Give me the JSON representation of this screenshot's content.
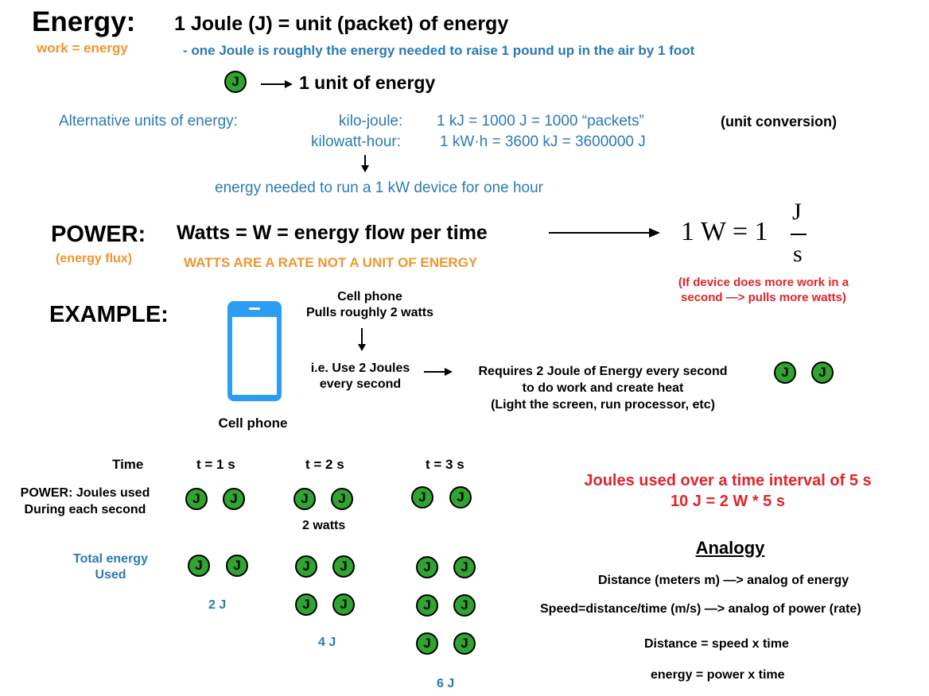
{
  "energy": {
    "title": "Energy:",
    "subtitle": "work = energy",
    "joule_def": "1 Joule (J) = unit (packet) of energy",
    "joule_desc": "- one Joule is roughly the energy needed to raise 1 pound up in the air by 1 foot",
    "unit_label": "1 unit of energy",
    "coin_letter": "J",
    "alt_units_label": "Alternative units of energy:",
    "kj_name": "kilo-joule:",
    "kj_value": "1  kJ = 1000 J = 1000 “packets”",
    "unit_conversion": "(unit conversion)",
    "kwh_name": "kilowatt-hour:",
    "kwh_value": "1  kW·h = 3600 kJ  =  3600000 J",
    "kwh_desc": "energy needed to run a 1 kW device for one hour"
  },
  "power": {
    "title": "POWER:",
    "subtitle": "(energy flux)",
    "def": "Watts = W = energy flow per time",
    "warning": "WATTS ARE A RATE NOT A UNIT OF ENERGY",
    "formula_left": "1 W = 1",
    "formula_num": "J",
    "formula_den": "s",
    "note_line1": "(If device does more work in a",
    "note_line2": "second —> pulls more watts)"
  },
  "example": {
    "title": "EXAMPLE:",
    "phone_label": "Cell phone",
    "phone_title": "Cell phone",
    "phone_watts": "Pulls roughly 2 watts",
    "ie_line1": "i.e. Use 2 Joules",
    "ie_line2": "every second",
    "req_line1": "Requires 2 Joule of Energy every second",
    "req_line2": "to do work and create heat",
    "req_line3": "(Light the screen, run processor, etc)"
  },
  "table": {
    "time_label": "Time",
    "t1": "t = 1 s",
    "t2": "t = 2 s",
    "t3": "t = 3 s",
    "power_line1": "POWER: Joules used",
    "power_line2": "During each second",
    "watts_label": "2 watts",
    "total_line1": "Total energy",
    "total_line2": "Used",
    "total1": "2 J",
    "total2": "4 J",
    "total3": "6 J"
  },
  "summary": {
    "line1": "Joules used over a time interval of 5 s",
    "line2": "10 J = 2 W * 5 s"
  },
  "analogy": {
    "title": "Analogy",
    "line1": "Distance (meters m)  —> analog of energy",
    "line2": "Speed=distance/time  (m/s)  —> analog of power (rate)",
    "line3": "Distance = speed x  time",
    "line4": "energy = power x  time"
  },
  "colors": {
    "blue": "#2a7ab5",
    "orange": "#f0952d",
    "red": "#e0242c",
    "coin_green": "#2fa52f",
    "phone_blue": "#2c9df2"
  }
}
